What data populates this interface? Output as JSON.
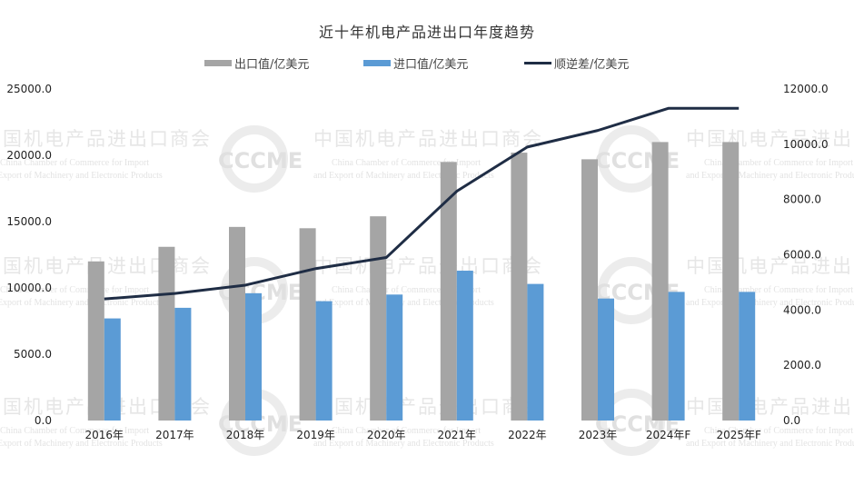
{
  "chart_data": {
    "type": "bar+line",
    "title": "近十年机电产品进出口年度趋势",
    "categories": [
      "2016年",
      "2017年",
      "2018年",
      "2019年",
      "2020年",
      "2021年",
      "2022年",
      "2023年",
      "2024年F",
      "2025年F"
    ],
    "series": [
      {
        "name": "出口值/亿美元",
        "type": "bar",
        "axis": "left",
        "color": "#a5a5a5",
        "values": [
          12000,
          13100,
          14600,
          14500,
          15400,
          19500,
          20200,
          19700,
          21000,
          21000
        ]
      },
      {
        "name": "进口值/亿美元",
        "type": "bar",
        "axis": "left",
        "color": "#5b9bd5",
        "values": [
          7700,
          8500,
          9600,
          9000,
          9500,
          11300,
          10300,
          9200,
          9700,
          9700
        ]
      },
      {
        "name": "顺逆差/亿美元",
        "type": "line",
        "axis": "right",
        "color": "#1f2d45",
        "values": [
          4400,
          4600,
          4900,
          5500,
          5900,
          8300,
          9900,
          10500,
          11300,
          11300
        ]
      }
    ],
    "left_axis": {
      "ylim": [
        0,
        25000
      ],
      "ticks": [
        "0.0",
        "5000.0",
        "10000.0",
        "15000.0",
        "20000.0",
        "25000.0"
      ]
    },
    "right_axis": {
      "ylim": [
        0,
        12000
      ],
      "ticks": [
        "0.0",
        "2000.0",
        "4000.0",
        "6000.0",
        "8000.0",
        "10000.0",
        "12000.0"
      ]
    },
    "xlabel": "",
    "ylabel": "",
    "grid": false,
    "legend_position": "top"
  },
  "title": "近十年机电产品进出口年度趋势",
  "legend": [
    {
      "label": "出口值/亿美元",
      "color": "#a5a5a5",
      "kind": "bar"
    },
    {
      "label": "进口值/亿美元",
      "color": "#5b9bd5",
      "kind": "bar"
    },
    {
      "label": "顺逆差/亿美元",
      "color": "#1f2d45",
      "kind": "line"
    }
  ],
  "watermark": {
    "cn": "中国机电产品进出口商会",
    "en1": "China Chamber of Commerce for Import",
    "en2": "and Export of Machinery and Electronic Products",
    "logo": "CCCME"
  }
}
